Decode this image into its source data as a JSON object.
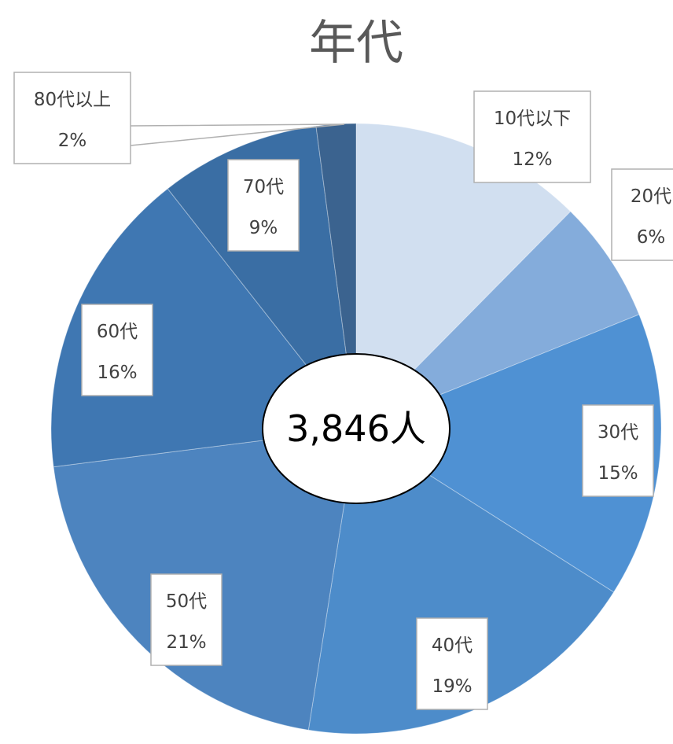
{
  "chart_data": {
    "type": "pie",
    "title": "年代",
    "center_label": "3,846人",
    "start_angle_deg": 0,
    "direction": "clockwise",
    "slices": [
      {
        "label": "10代以下",
        "pct_label": "12%",
        "value": 12.4,
        "color": "#d1dff0",
        "labelled": true
      },
      {
        "label": "20代",
        "pct_label": "6%",
        "value": 6.5,
        "color": "#84acdb",
        "labelled": true
      },
      {
        "label": "30代",
        "pct_label": "15%",
        "value": 15.1,
        "color": "#4f91d3",
        "labelled": true
      },
      {
        "label": "40代",
        "pct_label": "19%",
        "value": 18.5,
        "color": "#4d8cca",
        "labelled": true
      },
      {
        "label": "50代",
        "pct_label": "21%",
        "value": 20.5,
        "color": "#4d84bf",
        "labelled": true
      },
      {
        "label": "60代",
        "pct_label": "16%",
        "value": 16.4,
        "color": "#3f77b2",
        "labelled": true
      },
      {
        "label": "70代",
        "pct_label": "9%",
        "value": 8.5,
        "color": "#3a6ea4",
        "labelled": true
      },
      {
        "label": "80代以上",
        "pct_label": "2%",
        "value": 2.1,
        "color": "#3b638f",
        "labelled": true
      }
    ]
  }
}
